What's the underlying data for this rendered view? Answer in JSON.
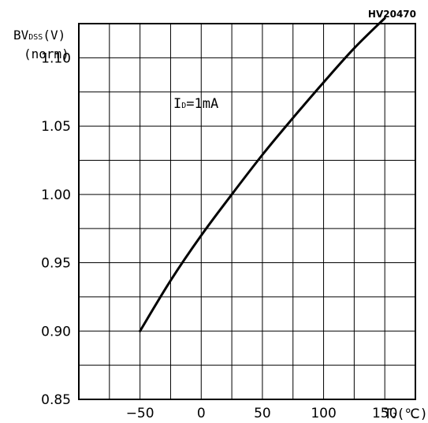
{
  "figure_code": "HV20470",
  "chart_data": {
    "type": "line",
    "title": "",
    "ylabel_main": "BV",
    "ylabel_sub": "DSS",
    "ylabel_unit": "(V)",
    "ylabel_line2": "(norm)",
    "xlabel_main": "T",
    "xlabel_sub": "J",
    "xlabel_unit": "(℃)",
    "annotation_main": "I",
    "annotation_sub": "D",
    "annotation_rest": "=1mA",
    "xlim": [
      -100,
      175
    ],
    "ylim": [
      0.85,
      1.125
    ],
    "x_ticks": [
      -50,
      0,
      50,
      100,
      150
    ],
    "x_tick_labels": [
      "−50",
      "0",
      "50",
      "100",
      "150"
    ],
    "y_ticks": [
      0.85,
      0.9,
      0.95,
      1.0,
      1.05,
      1.1
    ],
    "y_tick_labels": [
      "0.85",
      "0.90",
      "0.95",
      "1.00",
      "1.05",
      "1.10"
    ],
    "x_grid_step": 25,
    "y_grid_step": 0.025,
    "grid": true,
    "series": [
      {
        "x": [
          -50,
          -25,
          0,
          25,
          50,
          75,
          100,
          125,
          150
        ],
        "y": [
          0.9,
          0.937,
          0.97,
          1.0,
          1.029,
          1.056,
          1.082,
          1.107,
          1.129
        ]
      }
    ]
  }
}
